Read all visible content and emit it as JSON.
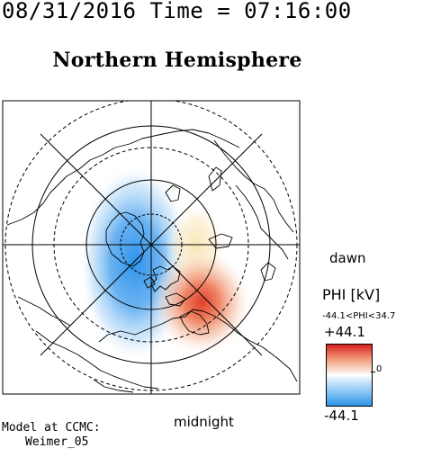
{
  "header": {
    "time_text": "08/31/2016 Time = 07:16:00",
    "title": "Northern Hemisphere"
  },
  "map": {
    "projection": "polar",
    "dawn_label": "dawn",
    "midnight_label": "midnight",
    "colors": {
      "positive": "#e0402a",
      "negative": "#2e93ea",
      "outline": "#000000"
    }
  },
  "colorbar": {
    "title": "PHI [kV]",
    "range_text": "-44.1<PHI<34.7",
    "max_label": "+44.1",
    "zero_label": "0",
    "min_label": "-44.1",
    "colors": [
      "#d62020",
      "#f08a6a",
      "#f8d8c8",
      "#ffffff",
      "#cfe6fa",
      "#7ec0f2",
      "#2e93ea"
    ]
  },
  "footer": {
    "model_line1": "Model at CCMC:",
    "model_line2": "Weimer_05"
  }
}
